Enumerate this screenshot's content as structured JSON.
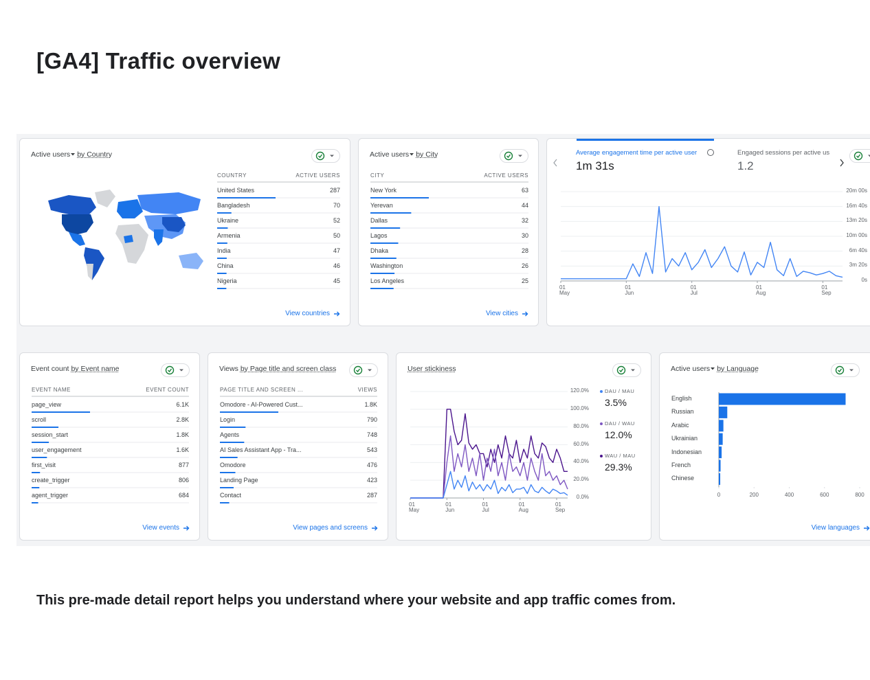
{
  "title": "[GA4] Traffic overview",
  "caption": "This pre-made detail report helps you understand where your website and app traffic comes from.",
  "country_card": {
    "title": "Active users",
    "metric_dropdown": true,
    "title_suffix": "by Country",
    "columns": [
      "COUNTRY",
      "ACTIVE USERS"
    ],
    "rows": [
      "United States",
      "Bangladesh",
      "Ukraine",
      "Armenia",
      "India",
      "China",
      "Nigeria"
    ],
    "values": [
      287,
      70,
      52,
      50,
      47,
      46,
      45
    ],
    "color": "#1a73e8",
    "link": "View countries"
  },
  "city_card": {
    "title": "Active users",
    "metric_dropdown": true,
    "title_suffix": "by City",
    "columns": [
      "CITY",
      "ACTIVE USERS"
    ],
    "rows": [
      "New York",
      "Yerevan",
      "Dallas",
      "Lagos",
      "Dhaka",
      "Washington",
      "Los Angeles"
    ],
    "values": [
      63,
      44,
      32,
      30,
      28,
      26,
      25
    ],
    "color": "#1a73e8",
    "link": "View cities"
  },
  "engagement_card": {
    "metrics": [
      {
        "name": "Average engagement time per active user",
        "value": 91,
        "value_label": "1m 31s"
      },
      {
        "name": "Engaged sessions per active us",
        "value": 1.2
      }
    ],
    "chart": {
      "type": "line",
      "color": "#4285f4",
      "x": [
        "01 May",
        "04 May",
        "07 May",
        "10 May",
        "13 May",
        "16 May",
        "19 May",
        "22 May",
        "25 May",
        "28 May",
        "01 Jun",
        "04 Jun",
        "07 Jun",
        "10 Jun",
        "13 Jun",
        "16 Jun",
        "19 Jun",
        "22 Jun",
        "25 Jun",
        "28 Jun",
        "01 Jul",
        "04 Jul",
        "07 Jul",
        "10 Jul",
        "13 Jul",
        "16 Jul",
        "19 Jul",
        "22 Jul",
        "25 Jul",
        "28 Jul",
        "01 Aug",
        "04 Aug",
        "07 Aug",
        "10 Aug",
        "13 Aug",
        "16 Aug",
        "19 Aug",
        "22 Aug",
        "25 Aug",
        "28 Aug",
        "01 Sep",
        "04 Sep",
        "07 Sep",
        "10 Sep"
      ],
      "values": [
        30,
        30,
        30,
        30,
        30,
        30,
        30,
        30,
        30,
        30,
        30,
        230,
        60,
        380,
        100,
        1000,
        120,
        300,
        200,
        380,
        150,
        250,
        420,
        180,
        300,
        460,
        200,
        120,
        390,
        80,
        250,
        180,
        520,
        150,
        70,
        300,
        60,
        130,
        110,
        80,
        100,
        130,
        70,
        50
      ],
      "ylim": [
        0,
        1200
      ],
      "yticks": [
        {
          "value": 0,
          "label": "0s"
        },
        {
          "value": 200,
          "label": "3m 20s"
        },
        {
          "value": 400,
          "label": "6m 40s"
        },
        {
          "value": 600,
          "label": "10m 00s"
        },
        {
          "value": 800,
          "label": "13m 20s"
        },
        {
          "value": 1000,
          "label": "16m 40s"
        },
        {
          "value": 1200,
          "label": "20m 00s"
        }
      ],
      "xticks": [
        "01 May",
        "01 Jun",
        "01 Jul",
        "01 Aug",
        "01 Sep"
      ],
      "grid": true
    }
  },
  "event_card": {
    "title": "Event count",
    "metric_dropdown": false,
    "title_suffix": "by Event name",
    "columns": [
      "EVENT NAME",
      "EVENT COUNT"
    ],
    "rows": [
      "page_view",
      "scroll",
      "session_start",
      "user_engagement",
      "first_visit",
      "create_trigger",
      "agent_trigger"
    ],
    "values": [
      6100,
      2800,
      1800,
      1600,
      877,
      806,
      684
    ],
    "value_labels": [
      "6.1K",
      "2.8K",
      "1.8K",
      "1.6K",
      "877",
      "806",
      "684"
    ],
    "color": "#1a73e8",
    "link": "View events"
  },
  "pages_card": {
    "title": "Views",
    "metric_dropdown": false,
    "title_suffix": "by Page title and screen class",
    "columns": [
      "PAGE TITLE AND SCREEN ...",
      "VIEWS"
    ],
    "rows": [
      "Omodore - AI-Powered Cust...",
      "Login",
      "Agents",
      "AI Sales Assistant App - Tra...",
      "Omodore",
      "Landing Page",
      "Contact"
    ],
    "values": [
      1800,
      790,
      748,
      543,
      476,
      423,
      287
    ],
    "value_labels": [
      "1.8K",
      "790",
      "748",
      "543",
      "476",
      "423",
      "287"
    ],
    "color": "#1a73e8",
    "link": "View pages and screens"
  },
  "stickiness_card": {
    "title": "User stickiness",
    "chart": {
      "type": "line",
      "x": [
        "01 May",
        "04 May",
        "07 May",
        "10 May",
        "13 May",
        "16 May",
        "19 May",
        "22 May",
        "25 May",
        "28 May",
        "01 Jun",
        "04 Jun",
        "07 Jun",
        "10 Jun",
        "13 Jun",
        "16 Jun",
        "19 Jun",
        "22 Jun",
        "25 Jun",
        "28 Jun",
        "01 Jul",
        "04 Jul",
        "07 Jul",
        "10 Jul",
        "13 Jul",
        "16 Jul",
        "19 Jul",
        "22 Jul",
        "25 Jul",
        "28 Jul",
        "01 Aug",
        "04 Aug",
        "07 Aug",
        "10 Aug",
        "13 Aug",
        "16 Aug",
        "19 Aug",
        "22 Aug",
        "25 Aug",
        "28 Aug",
        "01 Sep",
        "04 Sep",
        "07 Sep",
        "10 Sep"
      ],
      "series": [
        {
          "name": "DAU / MAU",
          "color": "#4285f4",
          "total": 3.5,
          "total_label": "3.5%",
          "values": [
            0,
            0,
            0,
            0,
            0,
            0,
            0,
            0,
            0,
            0,
            15,
            30,
            10,
            20,
            12,
            25,
            8,
            18,
            10,
            15,
            8,
            15,
            10,
            20,
            5,
            12,
            8,
            15,
            6,
            10,
            10,
            12,
            5,
            15,
            8,
            6,
            12,
            8,
            5,
            10,
            8,
            5,
            6,
            3
          ]
        },
        {
          "name": "DAU / WAU",
          "color": "#7e57c2",
          "total": 12.0,
          "total_label": "12.0%",
          "values": [
            0,
            0,
            0,
            0,
            0,
            0,
            0,
            0,
            0,
            0,
            40,
            70,
            30,
            50,
            35,
            60,
            30,
            45,
            25,
            50,
            20,
            45,
            30,
            55,
            25,
            40,
            20,
            50,
            30,
            35,
            25,
            40,
            20,
            45,
            30,
            20,
            50,
            25,
            30,
            20,
            25,
            15,
            20,
            10
          ]
        },
        {
          "name": "WAU / MAU",
          "color": "#4a148c",
          "total": 29.3,
          "total_label": "29.3%",
          "values": [
            0,
            0,
            0,
            0,
            0,
            0,
            0,
            0,
            0,
            0,
            100,
            100,
            75,
            60,
            65,
            95,
            62,
            55,
            60,
            50,
            50,
            35,
            55,
            40,
            60,
            45,
            70,
            50,
            45,
            65,
            40,
            55,
            45,
            70,
            50,
            45,
            62,
            58,
            45,
            40,
            55,
            45,
            30,
            30
          ]
        }
      ],
      "ylim": [
        0,
        120
      ],
      "yticks": [
        {
          "value": 0,
          "label": "0.0%"
        },
        {
          "value": 20,
          "label": "20.0%"
        },
        {
          "value": 40,
          "label": "40.0%"
        },
        {
          "value": 60,
          "label": "60.0%"
        },
        {
          "value": 80,
          "label": "80.0%"
        },
        {
          "value": 100,
          "label": "100.0%"
        },
        {
          "value": 120,
          "label": "120.0%"
        }
      ],
      "xticks": [
        "01 May",
        "01 Jun",
        "01 Jul",
        "01 Aug",
        "01 Sep"
      ],
      "grid": true
    }
  },
  "language_card": {
    "title": "Active users",
    "metric_dropdown": true,
    "title_suffix": "by Language",
    "chart": {
      "type": "bar",
      "orientation": "horizontal",
      "color": "#1a73e8",
      "categories": [
        "English",
        "Russian",
        "Arabic",
        "Ukrainian",
        "Indonesian",
        "French",
        "Chinese"
      ],
      "values": [
        720,
        48,
        26,
        22,
        16,
        10,
        8
      ],
      "xlim": [
        0,
        800
      ],
      "xticks": [
        0,
        200,
        400,
        600,
        800
      ]
    },
    "link": "View languages"
  }
}
